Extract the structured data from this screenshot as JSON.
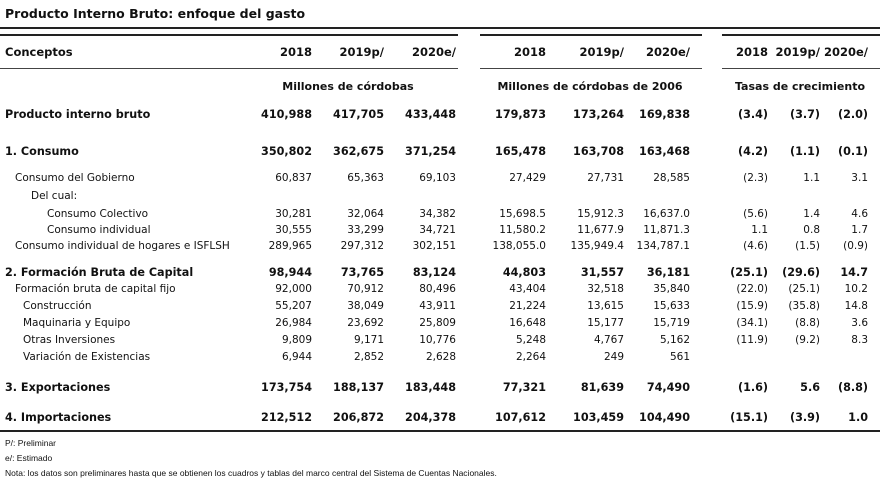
{
  "title": "Producto Interno Bruto: enfoque del gasto",
  "header": {
    "concept_label": "Conceptos",
    "years": [
      "2018",
      "2019p/",
      "2020e/"
    ],
    "units": [
      "Millones de córdobas",
      "Millones de córdobas de 2006",
      "Tasas de crecimiento"
    ]
  },
  "rows": [
    {
      "label": "Producto interno bruto",
      "bold": true,
      "indent": 0,
      "v": [
        "410,988",
        "417,705",
        "433,448",
        "179,873",
        "173,264",
        "169,838",
        "(3.4)",
        "(3.7)",
        "(2.0)"
      ]
    },
    {
      "label": "1. Consumo",
      "bold": true,
      "indent": 0,
      "v": [
        "350,802",
        "362,675",
        "371,254",
        "165,478",
        "163,708",
        "163,468",
        "(4.2)",
        "(1.1)",
        "(0.1)"
      ]
    },
    {
      "label": "Consumo del Gobierno",
      "bold": false,
      "indent": 10,
      "v": [
        "60,837",
        "65,363",
        "69,103",
        "27,429",
        "27,731",
        "28,585",
        "(2.3)",
        "1.1",
        "3.1"
      ]
    },
    {
      "label": "Del cual:",
      "bold": false,
      "indent": 26,
      "v": [
        "",
        "",
        "",
        "",
        "",
        "",
        "",
        "",
        ""
      ]
    },
    {
      "label": "Consumo Colectivo",
      "bold": false,
      "indent": 42,
      "v": [
        "30,281",
        "32,064",
        "34,382",
        "15,698.5",
        "15,912.3",
        "16,637.0",
        "(5.6)",
        "1.4",
        "4.6"
      ]
    },
    {
      "label": "Consumo individual",
      "bold": false,
      "indent": 42,
      "v": [
        "30,555",
        "33,299",
        "34,721",
        "11,580.2",
        "11,677.9",
        "11,871.3",
        "1.1",
        "0.8",
        "1.7"
      ]
    },
    {
      "label": "Consumo individual de hogares e ISFLSH",
      "bold": false,
      "indent": 10,
      "v": [
        "289,965",
        "297,312",
        "302,151",
        "138,055.0",
        "135,949.4",
        "134,787.1",
        "(4.6)",
        "(1.5)",
        "(0.9)"
      ]
    },
    {
      "label": "2. Formación Bruta de Capital",
      "bold": true,
      "indent": 0,
      "v": [
        "98,944",
        "73,765",
        "83,124",
        "44,803",
        "31,557",
        "36,181",
        "(25.1)",
        "(29.6)",
        "14.7"
      ]
    },
    {
      "label": "Formación bruta de capital fijo",
      "bold": false,
      "indent": 10,
      "v": [
        "92,000",
        "70,912",
        "80,496",
        "43,404",
        "32,518",
        "35,840",
        "(22.0)",
        "(25.1)",
        "10.2"
      ]
    },
    {
      "label": "Construcción",
      "bold": false,
      "indent": 18,
      "v": [
        "55,207",
        "38,049",
        "43,911",
        "21,224",
        "13,615",
        "15,633",
        "(15.9)",
        "(35.8)",
        "14.8"
      ]
    },
    {
      "label": "Maquinaria y Equipo",
      "bold": false,
      "indent": 18,
      "v": [
        "26,984",
        "23,692",
        "25,809",
        "16,648",
        "15,177",
        "15,719",
        "(34.1)",
        "(8.8)",
        "3.6"
      ]
    },
    {
      "label": "Otras Inversiones",
      "bold": false,
      "indent": 18,
      "v": [
        "9,809",
        "9,171",
        "10,776",
        "5,248",
        "4,767",
        "5,162",
        "(11.9)",
        "(9.2)",
        "8.3"
      ]
    },
    {
      "label": "Variación de Existencias",
      "bold": false,
      "indent": 18,
      "v": [
        "6,944",
        "2,852",
        "2,628",
        "2,264",
        "249",
        "561",
        "",
        "",
        ""
      ]
    },
    {
      "label": "3. Exportaciones",
      "bold": true,
      "indent": 0,
      "v": [
        "173,754",
        "188,137",
        "183,448",
        "77,321",
        "81,639",
        "74,490",
        "(1.6)",
        "5.6",
        "(8.8)"
      ]
    },
    {
      "label": "4. Importaciones",
      "bold": true,
      "indent": 0,
      "v": [
        "212,512",
        "206,872",
        "204,378",
        "107,612",
        "103,459",
        "104,490",
        "(15.1)",
        "(3.9)",
        "1.0"
      ]
    }
  ],
  "notes": [
    "P/: Preliminar",
    "e/: Estimado",
    "Nota: los datos son preliminares hasta que se obtienen los cuadros y tablas del marco central del Sistema de Cuentas Nacionales."
  ]
}
